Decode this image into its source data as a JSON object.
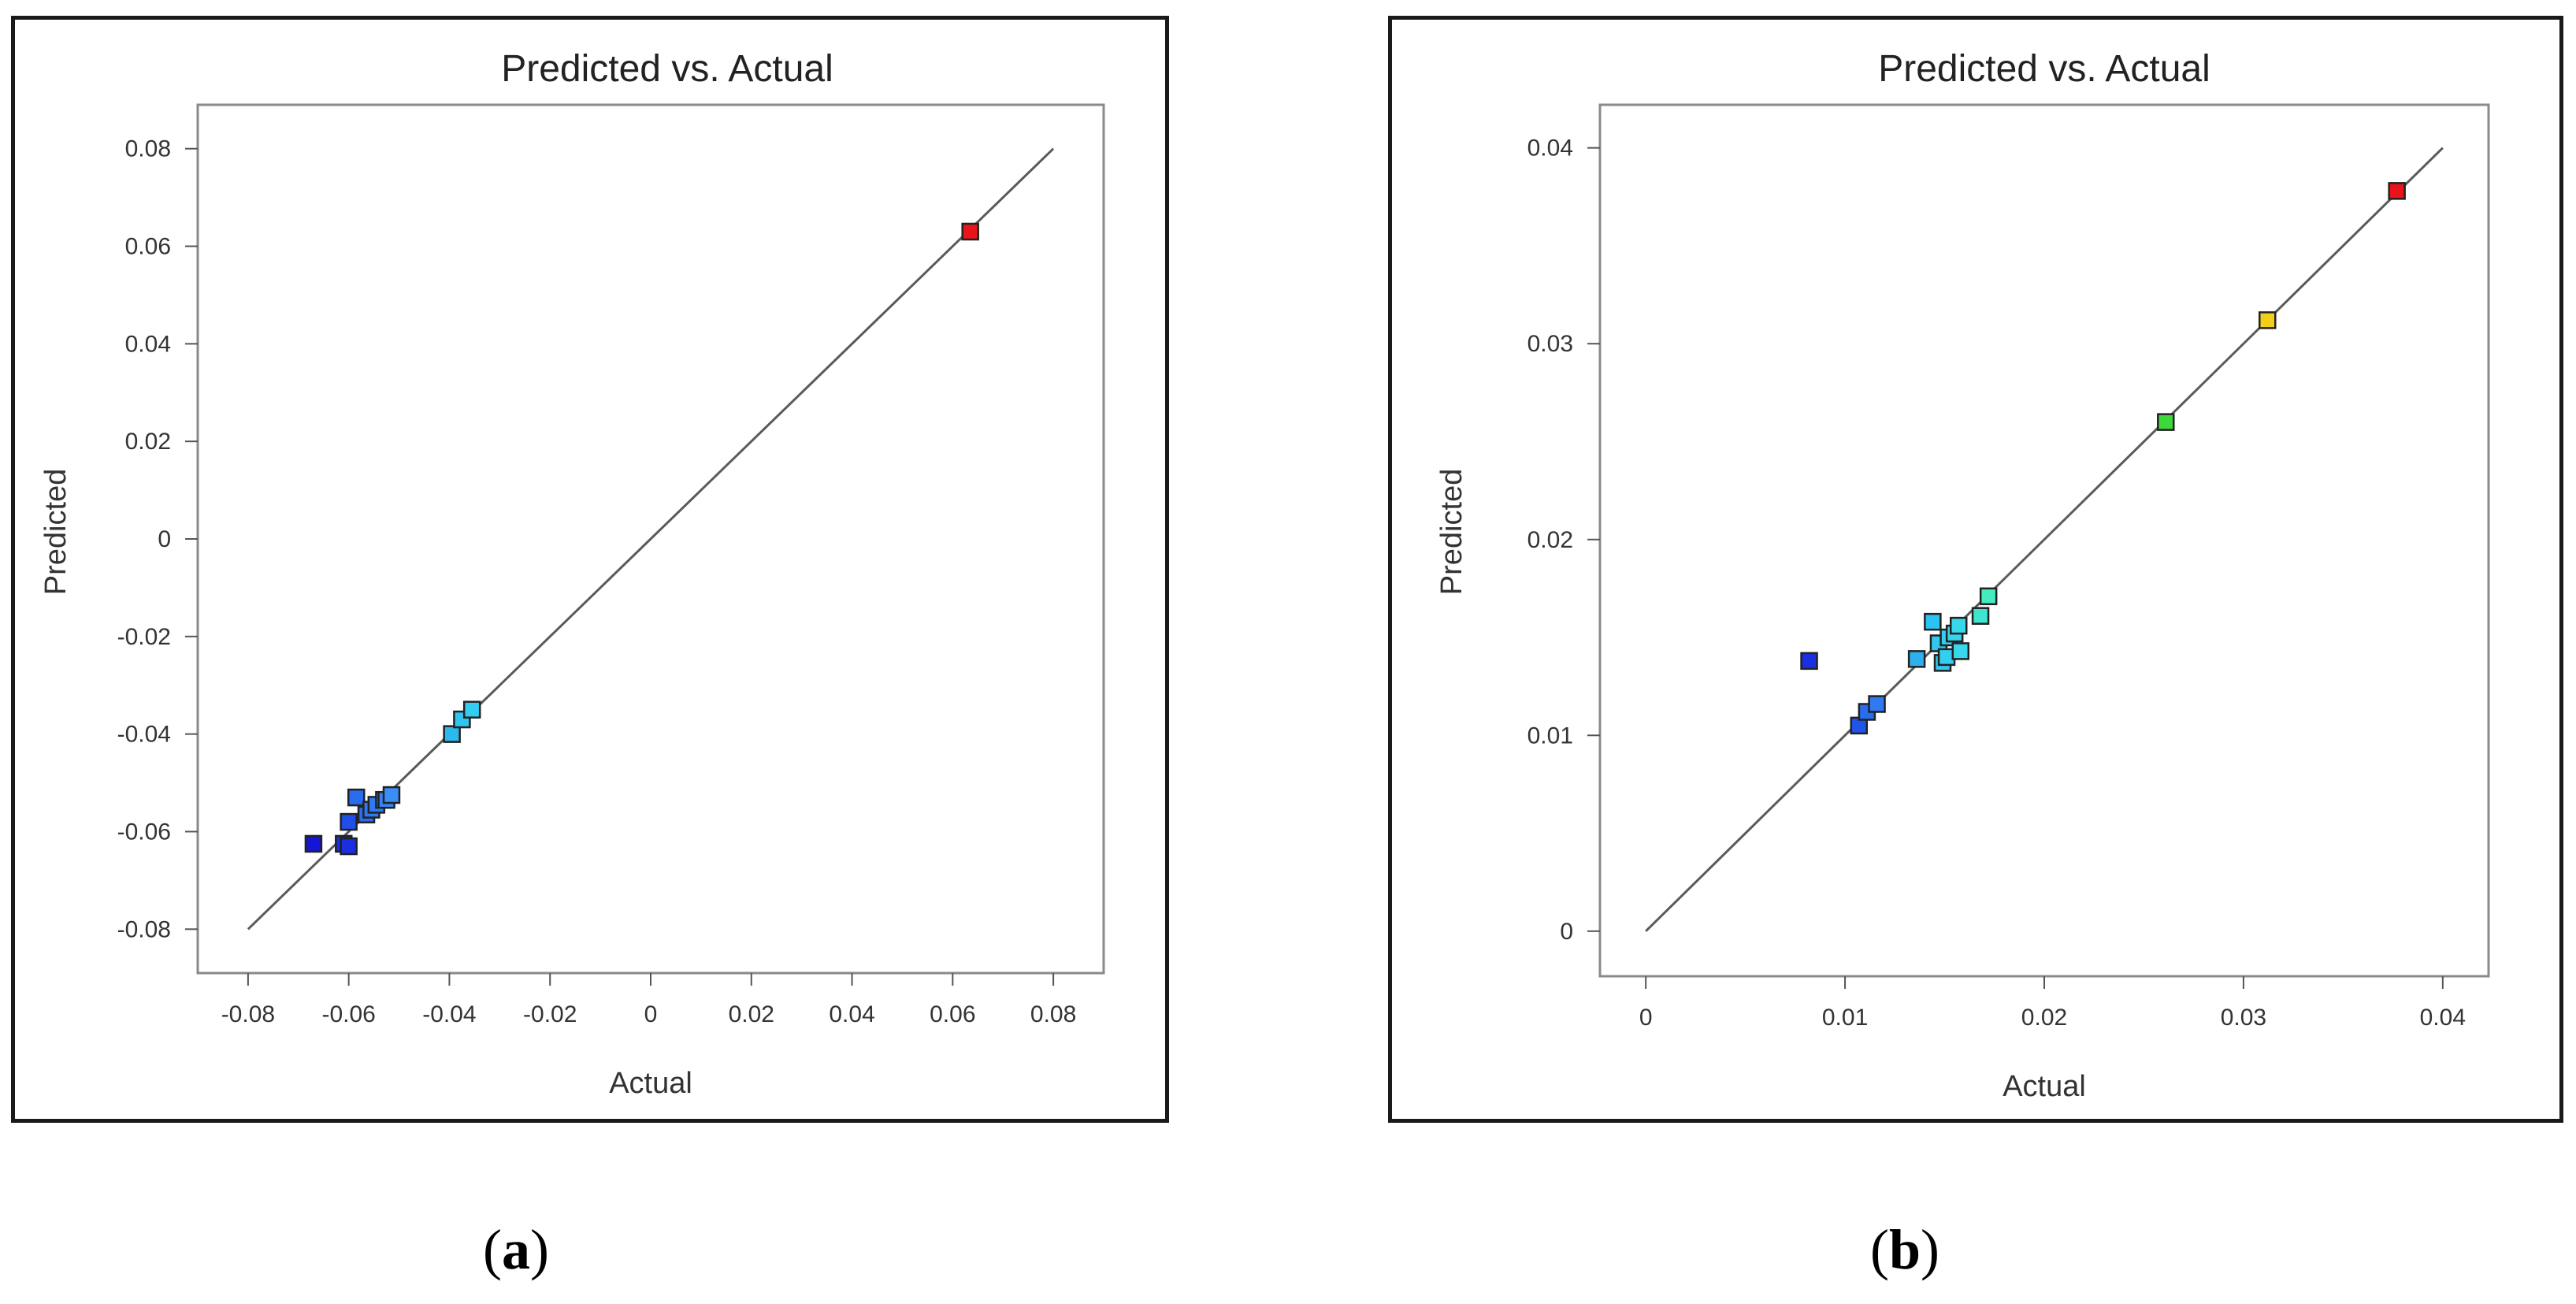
{
  "chart_data": [
    {
      "type": "scatter",
      "panel_label": "a",
      "title": "Predicted vs. Actual",
      "xlabel": "Actual",
      "ylabel": "Predicted",
      "xlim": [
        -0.09,
        0.09
      ],
      "ylim": [
        -0.089,
        0.089
      ],
      "x_ticks": [
        -0.08,
        -0.06,
        -0.04,
        -0.02,
        0,
        0.02,
        0.04,
        0.06,
        0.08
      ],
      "x_tick_labels": [
        "-0.08",
        "-0.06",
        "-0.04",
        "-0.02",
        "0",
        "0.02",
        "0.04",
        "0.06",
        "0.08"
      ],
      "y_ticks": [
        -0.08,
        -0.06,
        -0.04,
        -0.02,
        0,
        0.02,
        0.04,
        0.06,
        0.08
      ],
      "y_tick_labels": [
        "-0.08",
        "-0.06",
        "-0.04",
        "-0.02",
        "0",
        "0.02",
        "0.04",
        "0.06",
        "0.08"
      ],
      "reference_line": {
        "from": [
          -0.08,
          -0.08
        ],
        "to": [
          0.08,
          0.08
        ]
      },
      "grid": false,
      "points": [
        {
          "x": -0.067,
          "y": -0.0625,
          "color": "#1515d8"
        },
        {
          "x": -0.061,
          "y": -0.0625,
          "color": "#1a2fe0"
        },
        {
          "x": -0.06,
          "y": -0.063,
          "color": "#1a2fe0"
        },
        {
          "x": -0.06,
          "y": -0.058,
          "color": "#1f4fe8"
        },
        {
          "x": -0.0585,
          "y": -0.053,
          "color": "#2a6cf0"
        },
        {
          "x": -0.0565,
          "y": -0.0565,
          "color": "#2a6cf0"
        },
        {
          "x": -0.0555,
          "y": -0.0555,
          "color": "#2f7af2"
        },
        {
          "x": -0.0545,
          "y": -0.0545,
          "color": "#2f7af2"
        },
        {
          "x": -0.053,
          "y": -0.0535,
          "color": "#3585f4"
        },
        {
          "x": -0.0525,
          "y": -0.0535,
          "color": "#3585f4"
        },
        {
          "x": -0.0515,
          "y": -0.0525,
          "color": "#3a8ef6"
        },
        {
          "x": -0.0395,
          "y": -0.04,
          "color": "#2eb9ee"
        },
        {
          "x": -0.0375,
          "y": -0.037,
          "color": "#30c5f0"
        },
        {
          "x": -0.0355,
          "y": -0.035,
          "color": "#34cdf1"
        },
        {
          "x": 0.0635,
          "y": 0.063,
          "color": "#e8141a"
        }
      ]
    },
    {
      "type": "scatter",
      "panel_label": "b",
      "title": "Predicted vs. Actual",
      "xlabel": "Actual",
      "ylabel": "Predicted",
      "xlim": [
        -0.0023,
        0.0423
      ],
      "ylim": [
        -0.0023,
        0.0422
      ],
      "x_ticks": [
        0,
        0.01,
        0.02,
        0.03,
        0.04
      ],
      "x_tick_labels": [
        "0",
        "0.01",
        "0.02",
        "0.03",
        "0.04"
      ],
      "y_ticks": [
        0,
        0.01,
        0.02,
        0.03,
        0.04
      ],
      "y_tick_labels": [
        "0",
        "0.01",
        "0.02",
        "0.03",
        "0.04"
      ],
      "reference_line": {
        "from": [
          0,
          0
        ],
        "to": [
          0.04,
          0.04
        ]
      },
      "grid": false,
      "points": [
        {
          "x": 0.0082,
          "y": 0.0138,
          "color": "#1a2fe0"
        },
        {
          "x": 0.0107,
          "y": 0.0105,
          "color": "#1f55ea"
        },
        {
          "x": 0.0111,
          "y": 0.0112,
          "color": "#2a6cf0"
        },
        {
          "x": 0.0116,
          "y": 0.0116,
          "color": "#2f7af2"
        },
        {
          "x": 0.0136,
          "y": 0.0139,
          "color": "#2eb0ee"
        },
        {
          "x": 0.0144,
          "y": 0.0158,
          "color": "#2cc2f2"
        },
        {
          "x": 0.0147,
          "y": 0.0147,
          "color": "#30c8f0"
        },
        {
          "x": 0.0149,
          "y": 0.0137,
          "color": "#30c8f0"
        },
        {
          "x": 0.0151,
          "y": 0.014,
          "color": "#34cff0"
        },
        {
          "x": 0.0152,
          "y": 0.015,
          "color": "#34cff0"
        },
        {
          "x": 0.0155,
          "y": 0.0152,
          "color": "#36d4ee"
        },
        {
          "x": 0.0157,
          "y": 0.0156,
          "color": "#38d8ec"
        },
        {
          "x": 0.0158,
          "y": 0.0143,
          "color": "#38d8ec"
        },
        {
          "x": 0.0168,
          "y": 0.0161,
          "color": "#3ee6d0"
        },
        {
          "x": 0.0172,
          "y": 0.0171,
          "color": "#44ecc0"
        },
        {
          "x": 0.0261,
          "y": 0.026,
          "color": "#3cd83c"
        },
        {
          "x": 0.0312,
          "y": 0.0312,
          "color": "#f2d01a"
        },
        {
          "x": 0.0377,
          "y": 0.0378,
          "color": "#e8141a"
        }
      ]
    }
  ]
}
